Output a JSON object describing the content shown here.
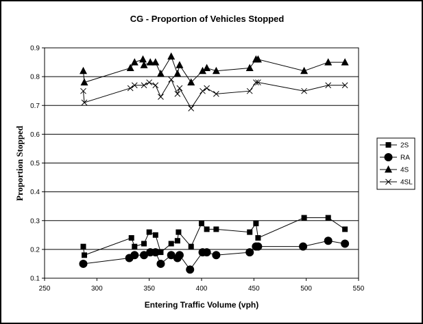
{
  "chart_data": {
    "type": "scatter",
    "title": "CG - Proportion of Vehicles Stopped",
    "xlabel": "Entering Traffic Volume (vph)",
    "ylabel": "Proportion Stopped",
    "xlim": [
      250,
      550
    ],
    "ylim": [
      0.1,
      0.9
    ],
    "x_ticks": [
      "250",
      "300",
      "350",
      "400",
      "450",
      "500",
      "550"
    ],
    "y_ticks": [
      "0.1",
      "0.2",
      "0.3",
      "0.4",
      "0.5",
      "0.6",
      "0.7",
      "0.8",
      "0.9"
    ],
    "grid": "horizontal",
    "legend_position": "right",
    "series": [
      {
        "name": "2S",
        "marker": "square",
        "points": [
          [
            287,
            0.21
          ],
          [
            288,
            0.18
          ],
          [
            333,
            0.24
          ],
          [
            336,
            0.21
          ],
          [
            345,
            0.22
          ],
          [
            350,
            0.26
          ],
          [
            356,
            0.25
          ],
          [
            361,
            0.19
          ],
          [
            371,
            0.22
          ],
          [
            377,
            0.23
          ],
          [
            378,
            0.26
          ],
          [
            390,
            0.21
          ],
          [
            400,
            0.29
          ],
          [
            405,
            0.27
          ],
          [
            414,
            0.27
          ],
          [
            446,
            0.26
          ],
          [
            452,
            0.29
          ],
          [
            454,
            0.24
          ],
          [
            498,
            0.31
          ],
          [
            521,
            0.31
          ],
          [
            537,
            0.27
          ]
        ]
      },
      {
        "name": "RA",
        "marker": "circle",
        "points": [
          [
            287,
            0.15
          ],
          [
            331,
            0.17
          ],
          [
            336,
            0.18
          ],
          [
            345,
            0.18
          ],
          [
            351,
            0.19
          ],
          [
            356,
            0.19
          ],
          [
            361,
            0.15
          ],
          [
            371,
            0.18
          ],
          [
            377,
            0.17
          ],
          [
            379,
            0.18
          ],
          [
            389,
            0.13
          ],
          [
            401,
            0.19
          ],
          [
            405,
            0.19
          ],
          [
            414,
            0.18
          ],
          [
            446,
            0.19
          ],
          [
            452,
            0.21
          ],
          [
            454,
            0.21
          ],
          [
            497,
            0.21
          ],
          [
            521,
            0.23
          ],
          [
            537,
            0.22
          ]
        ]
      },
      {
        "name": "4S",
        "marker": "triangle",
        "points": [
          [
            287,
            0.82
          ],
          [
            288,
            0.78
          ],
          [
            332,
            0.83
          ],
          [
            336,
            0.85
          ],
          [
            344,
            0.86
          ],
          [
            345,
            0.84
          ],
          [
            351,
            0.85
          ],
          [
            356,
            0.85
          ],
          [
            361,
            0.81
          ],
          [
            371,
            0.87
          ],
          [
            377,
            0.81
          ],
          [
            379,
            0.84
          ],
          [
            390,
            0.78
          ],
          [
            401,
            0.82
          ],
          [
            405,
            0.83
          ],
          [
            414,
            0.82
          ],
          [
            446,
            0.83
          ],
          [
            452,
            0.86
          ],
          [
            454,
            0.86
          ],
          [
            498,
            0.82
          ],
          [
            521,
            0.85
          ],
          [
            537,
            0.85
          ]
        ]
      },
      {
        "name": "4SL",
        "marker": "x",
        "points": [
          [
            287,
            0.75
          ],
          [
            288,
            0.71
          ],
          [
            332,
            0.76
          ],
          [
            336,
            0.77
          ],
          [
            345,
            0.77
          ],
          [
            350,
            0.78
          ],
          [
            356,
            0.77
          ],
          [
            361,
            0.73
          ],
          [
            371,
            0.79
          ],
          [
            377,
            0.74
          ],
          [
            379,
            0.76
          ],
          [
            390,
            0.69
          ],
          [
            401,
            0.75
          ],
          [
            405,
            0.76
          ],
          [
            414,
            0.74
          ],
          [
            446,
            0.75
          ],
          [
            452,
            0.78
          ],
          [
            454,
            0.78
          ],
          [
            498,
            0.75
          ],
          [
            521,
            0.77
          ],
          [
            537,
            0.77
          ]
        ]
      }
    ]
  }
}
